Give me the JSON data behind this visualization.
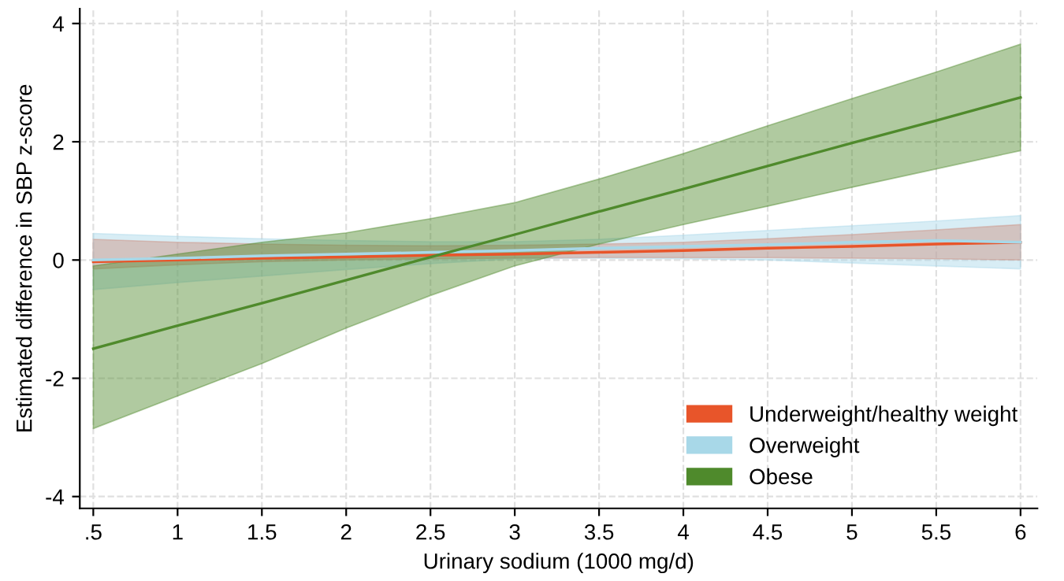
{
  "chart_data": {
    "type": "line",
    "xlabel": "Urinary sodium (1000 mg/d)",
    "ylabel": "Estimated difference in SBP z-score",
    "x": [
      0.5,
      1,
      1.5,
      2,
      2.5,
      3,
      3.5,
      4,
      4.5,
      5,
      5.5,
      6
    ],
    "series": [
      {
        "name": "Underweight/healthy weight",
        "color": "#e8552a",
        "values": [
          -0.03,
          0,
          0.03,
          0.05,
          0.08,
          0.1,
          0.13,
          0.16,
          0.2,
          0.23,
          0.27,
          0.3
        ],
        "lower": [
          -0.15,
          -0.08,
          -0.03,
          0,
          0.02,
          0.03,
          0.04,
          0.04,
          0.04,
          0.03,
          0.02,
          0.0
        ],
        "upper": [
          0.35,
          0.3,
          0.27,
          0.25,
          0.24,
          0.25,
          0.27,
          0.3,
          0.36,
          0.43,
          0.51,
          0.6
        ]
      },
      {
        "name": "Overweight",
        "color": "#a8d8e8",
        "values": [
          0.0,
          0.03,
          0.07,
          0.1,
          0.13,
          0.16,
          0.2,
          0.23,
          0.26,
          0.3,
          0.33,
          0.3
        ],
        "lower": [
          -0.5,
          -0.38,
          -0.27,
          -0.16,
          -0.06,
          0.02,
          0.03,
          0.02,
          0.0,
          -0.05,
          -0.1,
          -0.15
        ],
        "upper": [
          0.45,
          0.4,
          0.36,
          0.33,
          0.31,
          0.31,
          0.35,
          0.42,
          0.5,
          0.58,
          0.66,
          0.75
        ]
      },
      {
        "name": "Obese",
        "color": "#4f8a2c",
        "values": [
          -1.5,
          -1.11,
          -0.73,
          -0.34,
          0.05,
          0.43,
          0.82,
          1.2,
          1.59,
          1.98,
          2.36,
          2.75
        ],
        "lower": [
          -2.85,
          -2.3,
          -1.75,
          -1.15,
          -0.6,
          -0.1,
          0.27,
          0.6,
          0.91,
          1.23,
          1.54,
          1.85
        ],
        "upper": [
          -0.1,
          0.1,
          0.3,
          0.46,
          0.7,
          0.97,
          1.37,
          1.8,
          2.27,
          2.73,
          3.18,
          3.65
        ]
      }
    ],
    "xlim": [
      0.42,
      6.1
    ],
    "ylim": [
      -4.2,
      4.25
    ],
    "xticks": [
      {
        "value": 0.5,
        "label": ".5"
      },
      1,
      1.5,
      2,
      2.5,
      3,
      3.5,
      4,
      4.5,
      5,
      5.5,
      6
    ],
    "yticks": [
      -4,
      -2,
      0,
      2,
      4
    ],
    "grid": true,
    "legend": "bottom right",
    "marker": "none",
    "line_style": "solid"
  }
}
